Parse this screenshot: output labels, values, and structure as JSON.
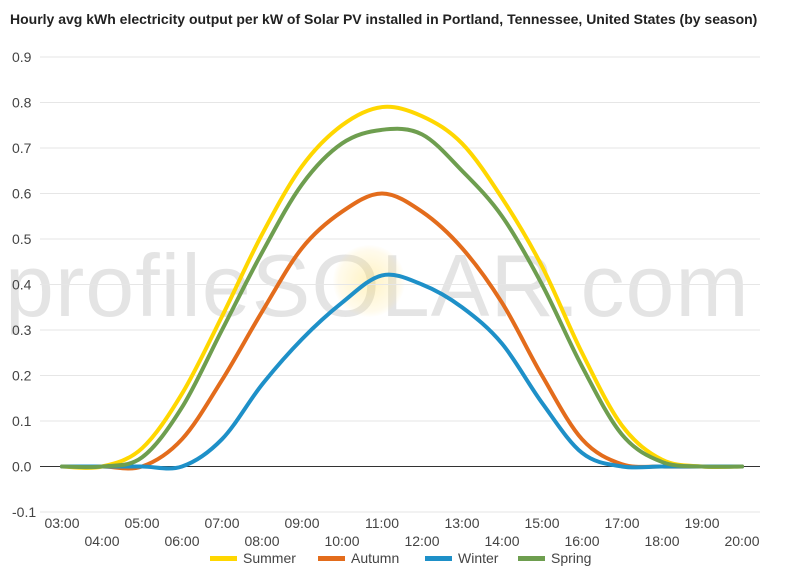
{
  "title": "Hourly avg kWh electricity output per kW of Solar PV installed in Portland, Tennessee, United States (by season)",
  "watermark": "profileSOLAR.com",
  "chart_data": {
    "type": "line",
    "title": "Hourly avg kWh electricity output per kW of Solar PV installed in Portland, Tennessee, United States (by season)",
    "xlabel": "",
    "ylabel": "",
    "x": [
      "03:00",
      "04:00",
      "05:00",
      "06:00",
      "07:00",
      "08:00",
      "09:00",
      "10:00",
      "11:00",
      "12:00",
      "13:00",
      "14:00",
      "15:00",
      "16:00",
      "17:00",
      "18:00",
      "19:00",
      "20:00"
    ],
    "ylim": [
      -0.1,
      0.9
    ],
    "yticks": [
      "-0.1",
      "0.0",
      "0.1",
      "0.2",
      "0.3",
      "0.4",
      "0.5",
      "0.6",
      "0.7",
      "0.8",
      "0.9"
    ],
    "grid": true,
    "legend_position": "bottom",
    "series": [
      {
        "name": "Summer",
        "color": "#ffd700",
        "values": [
          0,
          0,
          0.04,
          0.16,
          0.33,
          0.51,
          0.66,
          0.75,
          0.79,
          0.77,
          0.71,
          0.59,
          0.44,
          0.25,
          0.09,
          0.015,
          0,
          0
        ]
      },
      {
        "name": "Autumn",
        "color": "#e36c1c",
        "values": [
          0,
          0,
          0,
          0.06,
          0.19,
          0.34,
          0.48,
          0.56,
          0.6,
          0.56,
          0.48,
          0.36,
          0.2,
          0.06,
          0.005,
          0,
          0,
          0
        ]
      },
      {
        "name": "Winter",
        "color": "#1e90c8",
        "values": [
          0,
          0,
          0,
          0,
          0.06,
          0.18,
          0.28,
          0.36,
          0.42,
          0.4,
          0.35,
          0.27,
          0.14,
          0.03,
          0,
          0,
          0,
          0
        ]
      },
      {
        "name": "Spring",
        "color": "#6e9e4f",
        "values": [
          0,
          0,
          0.02,
          0.13,
          0.3,
          0.47,
          0.62,
          0.71,
          0.74,
          0.73,
          0.65,
          0.55,
          0.4,
          0.22,
          0.07,
          0.01,
          0,
          0
        ]
      }
    ]
  }
}
